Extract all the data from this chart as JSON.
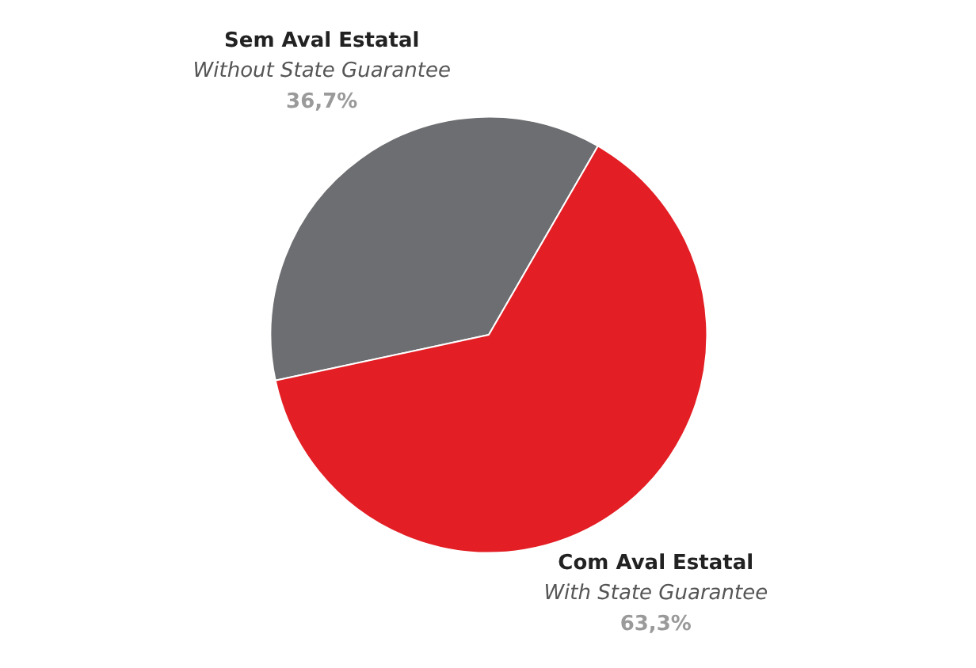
{
  "chart_data": {
    "type": "pie",
    "categories": [
      "Sem Aval Estatal\nWithout State Guarantee",
      "Com Aval Estatal\nWith State Guarantee"
    ],
    "values": [
      36.7,
      63.3
    ],
    "colors": [
      "#6d6e71",
      "#e31e24"
    ],
    "value_labels": [
      "36,7%",
      "63,3%"
    ]
  }
}
